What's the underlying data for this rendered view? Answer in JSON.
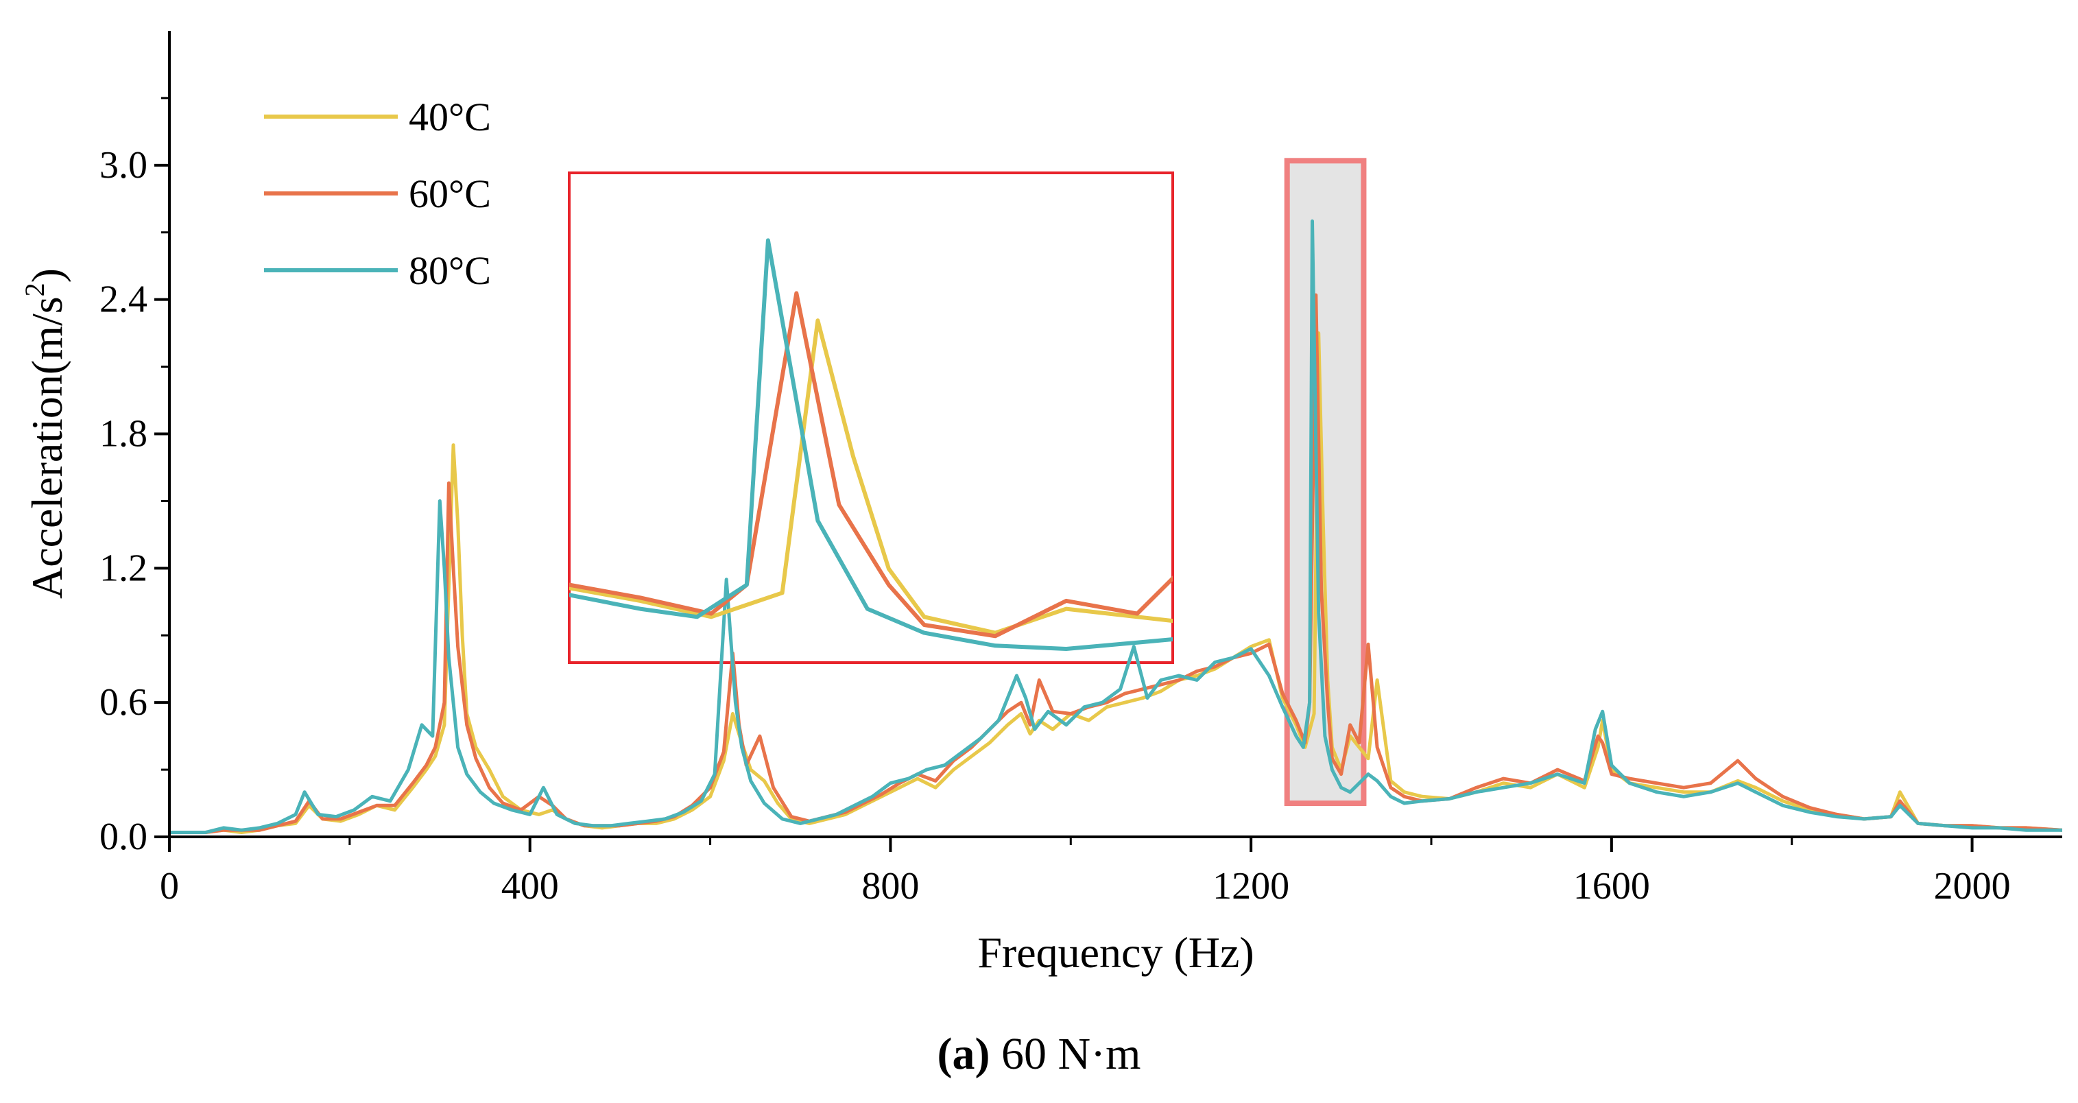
{
  "chart_data": {
    "type": "line",
    "xlabel": "Frequency (Hz)",
    "ylabel": "Acceleration(m/s",
    "ylabel_superscript": "2",
    "ylabel_close": ")",
    "xlim": [
      0,
      2100
    ],
    "ylim": [
      0,
      3.6
    ],
    "xticks": [
      0,
      400,
      800,
      1200,
      1600,
      2000
    ],
    "xtick_labels": [
      "0",
      "400",
      "800",
      "1200",
      "1600",
      "2000"
    ],
    "yticks": [
      0,
      0.6,
      1.2,
      1.8,
      2.4,
      3.0
    ],
    "ytick_labels": [
      "0.0",
      "0.6",
      "1.2",
      "1.8",
      "2.4",
      "3.0"
    ],
    "legend_position": "top-left",
    "caption_bold": "(a)",
    "caption_rest": " 60 N·m",
    "highlight_region": {
      "x": [
        1240,
        1325
      ],
      "y": [
        0.15,
        3.02
      ],
      "fill": "#e4e4e4",
      "stroke": "#f08080"
    },
    "inset_zoom": {
      "source_x": [
        1240,
        1325
      ],
      "frame_color": "#e8242b"
    },
    "series": [
      {
        "name": "40°C",
        "color": "#e8c84a",
        "x": [
          0,
          40,
          60,
          80,
          100,
          120,
          140,
          155,
          170,
          190,
          210,
          230,
          250,
          270,
          285,
          295,
          305,
          315,
          320,
          325,
          330,
          340,
          355,
          370,
          390,
          410,
          425,
          440,
          460,
          480,
          500,
          520,
          540,
          560,
          580,
          600,
          615,
          625,
          635,
          645,
          660,
          675,
          690,
          710,
          730,
          750,
          770,
          790,
          810,
          830,
          850,
          870,
          890,
          910,
          930,
          945,
          955,
          965,
          980,
          1000,
          1020,
          1040,
          1060,
          1080,
          1100,
          1120,
          1140,
          1160,
          1180,
          1200,
          1220,
          1235,
          1250,
          1260,
          1270,
          1275,
          1280,
          1285,
          1290,
          1300,
          1310,
          1320,
          1330,
          1340,
          1355,
          1370,
          1390,
          1420,
          1450,
          1480,
          1510,
          1540,
          1570,
          1585,
          1590,
          1600,
          1620,
          1650,
          1680,
          1710,
          1740,
          1760,
          1790,
          1820,
          1850,
          1880,
          1910,
          1920,
          1940,
          1970,
          2000,
          2030,
          2060,
          2100
        ],
        "values": [
          0.02,
          0.02,
          0.03,
          0.02,
          0.03,
          0.05,
          0.06,
          0.14,
          0.08,
          0.07,
          0.1,
          0.14,
          0.12,
          0.22,
          0.3,
          0.36,
          0.5,
          1.75,
          1.4,
          0.9,
          0.55,
          0.4,
          0.3,
          0.18,
          0.12,
          0.1,
          0.12,
          0.08,
          0.05,
          0.04,
          0.05,
          0.06,
          0.06,
          0.08,
          0.12,
          0.18,
          0.34,
          0.55,
          0.42,
          0.3,
          0.25,
          0.15,
          0.08,
          0.06,
          0.08,
          0.1,
          0.14,
          0.18,
          0.22,
          0.26,
          0.22,
          0.3,
          0.36,
          0.42,
          0.5,
          0.55,
          0.46,
          0.52,
          0.48,
          0.55,
          0.52,
          0.58,
          0.6,
          0.62,
          0.65,
          0.7,
          0.72,
          0.75,
          0.8,
          0.85,
          0.88,
          0.62,
          0.5,
          0.4,
          0.55,
          2.25,
          1.4,
          0.7,
          0.4,
          0.3,
          0.45,
          0.4,
          0.35,
          0.7,
          0.25,
          0.2,
          0.18,
          0.17,
          0.2,
          0.24,
          0.22,
          0.28,
          0.22,
          0.4,
          0.52,
          0.3,
          0.24,
          0.22,
          0.2,
          0.2,
          0.25,
          0.22,
          0.16,
          0.12,
          0.1,
          0.08,
          0.09,
          0.2,
          0.06,
          0.05,
          0.05,
          0.04,
          0.04,
          0.03
        ]
      },
      {
        "name": "60°C",
        "color": "#e8734a",
        "x": [
          0,
          40,
          60,
          80,
          100,
          120,
          140,
          155,
          170,
          190,
          210,
          230,
          250,
          270,
          285,
          295,
          305,
          310,
          315,
          320,
          330,
          340,
          355,
          370,
          390,
          410,
          425,
          440,
          460,
          480,
          500,
          520,
          540,
          560,
          580,
          600,
          615,
          625,
          632,
          640,
          655,
          670,
          690,
          710,
          730,
          750,
          770,
          790,
          810,
          830,
          850,
          870,
          890,
          910,
          930,
          945,
          955,
          965,
          980,
          1000,
          1020,
          1040,
          1060,
          1080,
          1100,
          1120,
          1140,
          1160,
          1180,
          1200,
          1220,
          1235,
          1250,
          1260,
          1265,
          1272,
          1278,
          1285,
          1290,
          1300,
          1310,
          1320,
          1330,
          1340,
          1355,
          1370,
          1390,
          1420,
          1450,
          1480,
          1510,
          1540,
          1570,
          1585,
          1590,
          1600,
          1620,
          1650,
          1680,
          1710,
          1740,
          1760,
          1790,
          1820,
          1850,
          1880,
          1910,
          1920,
          1940,
          1970,
          2000,
          2030,
          2060,
          2100
        ],
        "values": [
          0.02,
          0.02,
          0.03,
          0.03,
          0.03,
          0.05,
          0.07,
          0.16,
          0.08,
          0.08,
          0.11,
          0.14,
          0.14,
          0.24,
          0.32,
          0.4,
          0.6,
          1.58,
          1.2,
          0.85,
          0.5,
          0.35,
          0.22,
          0.15,
          0.12,
          0.18,
          0.14,
          0.08,
          0.05,
          0.05,
          0.05,
          0.06,
          0.07,
          0.09,
          0.14,
          0.22,
          0.38,
          0.82,
          0.5,
          0.32,
          0.45,
          0.22,
          0.09,
          0.07,
          0.09,
          0.11,
          0.15,
          0.19,
          0.24,
          0.28,
          0.25,
          0.34,
          0.4,
          0.48,
          0.56,
          0.6,
          0.5,
          0.7,
          0.56,
          0.55,
          0.58,
          0.6,
          0.64,
          0.66,
          0.68,
          0.7,
          0.74,
          0.76,
          0.8,
          0.82,
          0.86,
          0.64,
          0.52,
          0.42,
          0.6,
          2.42,
          1.1,
          0.6,
          0.35,
          0.28,
          0.5,
          0.42,
          0.86,
          0.4,
          0.22,
          0.18,
          0.16,
          0.17,
          0.22,
          0.26,
          0.24,
          0.3,
          0.25,
          0.45,
          0.42,
          0.28,
          0.26,
          0.24,
          0.22,
          0.24,
          0.34,
          0.26,
          0.18,
          0.13,
          0.1,
          0.08,
          0.09,
          0.16,
          0.06,
          0.05,
          0.05,
          0.04,
          0.04,
          0.03
        ]
      },
      {
        "name": "80°C",
        "color": "#4ab3b8",
        "x": [
          0,
          40,
          60,
          80,
          100,
          120,
          140,
          150,
          165,
          185,
          205,
          225,
          245,
          265,
          280,
          292,
          300,
          305,
          310,
          320,
          330,
          345,
          360,
          380,
          400,
          415,
          430,
          450,
          470,
          490,
          510,
          530,
          550,
          570,
          590,
          605,
          618,
          628,
          635,
          645,
          660,
          680,
          700,
          720,
          740,
          760,
          780,
          800,
          820,
          840,
          860,
          880,
          900,
          920,
          940,
          950,
          960,
          975,
          995,
          1015,
          1035,
          1055,
          1070,
          1085,
          1100,
          1120,
          1140,
          1160,
          1180,
          1200,
          1220,
          1235,
          1250,
          1258,
          1265,
          1268,
          1275,
          1282,
          1290,
          1300,
          1310,
          1320,
          1330,
          1340,
          1355,
          1370,
          1390,
          1420,
          1450,
          1480,
          1510,
          1540,
          1570,
          1582,
          1590,
          1600,
          1620,
          1650,
          1680,
          1710,
          1740,
          1760,
          1790,
          1820,
          1850,
          1880,
          1910,
          1920,
          1940,
          1970,
          2000,
          2030,
          2060,
          2100
        ],
        "values": [
          0.02,
          0.02,
          0.04,
          0.03,
          0.04,
          0.06,
          0.1,
          0.2,
          0.1,
          0.09,
          0.12,
          0.18,
          0.16,
          0.3,
          0.5,
          0.45,
          1.5,
          1.2,
          0.8,
          0.4,
          0.28,
          0.2,
          0.15,
          0.12,
          0.1,
          0.22,
          0.1,
          0.06,
          0.05,
          0.05,
          0.06,
          0.07,
          0.08,
          0.11,
          0.16,
          0.28,
          1.15,
          0.6,
          0.4,
          0.25,
          0.15,
          0.08,
          0.06,
          0.08,
          0.1,
          0.14,
          0.18,
          0.24,
          0.26,
          0.3,
          0.32,
          0.38,
          0.44,
          0.52,
          0.72,
          0.62,
          0.48,
          0.56,
          0.5,
          0.58,
          0.6,
          0.66,
          0.85,
          0.62,
          0.7,
          0.72,
          0.7,
          0.78,
          0.8,
          0.84,
          0.72,
          0.58,
          0.45,
          0.4,
          0.6,
          2.75,
          1.0,
          0.45,
          0.3,
          0.22,
          0.2,
          0.24,
          0.28,
          0.25,
          0.18,
          0.15,
          0.16,
          0.17,
          0.2,
          0.22,
          0.24,
          0.28,
          0.24,
          0.48,
          0.56,
          0.32,
          0.24,
          0.2,
          0.18,
          0.2,
          0.24,
          0.2,
          0.14,
          0.11,
          0.09,
          0.08,
          0.09,
          0.14,
          0.06,
          0.05,
          0.04,
          0.04,
          0.03,
          0.03
        ]
      }
    ]
  }
}
